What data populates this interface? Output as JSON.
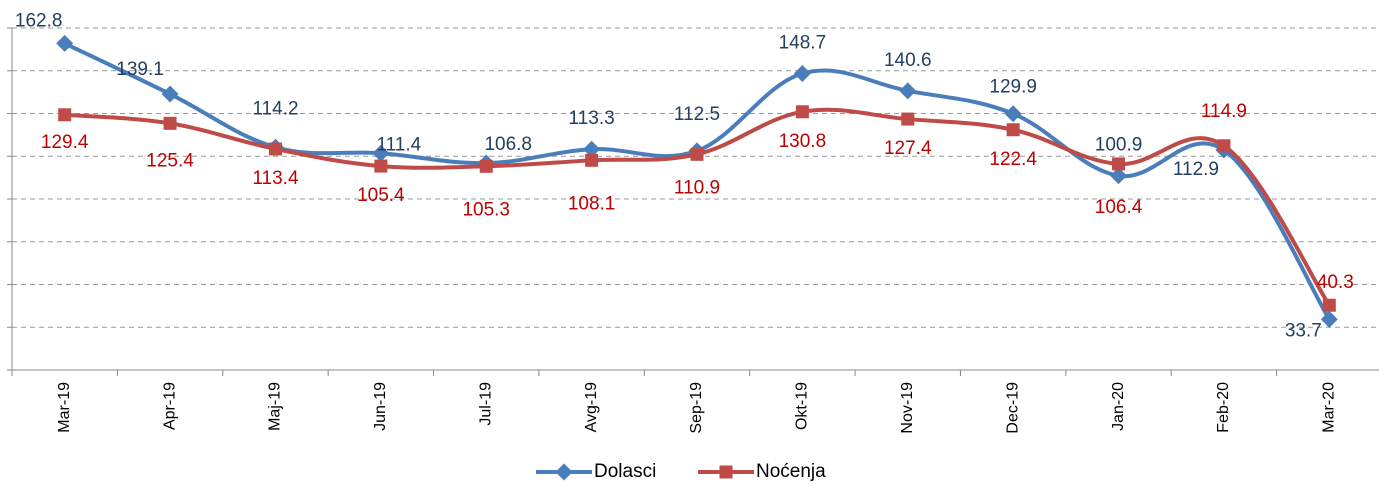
{
  "chart_data": {
    "type": "line",
    "categories": [
      "Mar-19",
      "Apr-19",
      "Maj-19",
      "Jun-19",
      "Jul-19",
      "Avg-19",
      "Sep-19",
      "Okt-19",
      "Nov-19",
      "Dec-19",
      "Jan-20",
      "Feb-20",
      "Mar-20"
    ],
    "series": [
      {
        "name": "Dolasci",
        "color": "#4a7ebb",
        "label_color": "#243f60",
        "values": [
          162.8,
          139.1,
          114.2,
          111.4,
          106.8,
          113.3,
          112.5,
          148.7,
          140.6,
          129.9,
          100.9,
          112.9,
          33.7
        ]
      },
      {
        "name": "Noćenja",
        "color": "#be4b48",
        "label_color": "#c00000",
        "values": [
          129.4,
          125.4,
          113.4,
          105.4,
          105.3,
          108.1,
          110.9,
          130.8,
          127.4,
          122.4,
          106.4,
          114.9,
          40.3
        ]
      }
    ],
    "ylim": [
      10,
      170
    ],
    "yticks": [
      10,
      30,
      50,
      70,
      90,
      110,
      130,
      150,
      170
    ],
    "grid": true,
    "legend": "bottom"
  }
}
